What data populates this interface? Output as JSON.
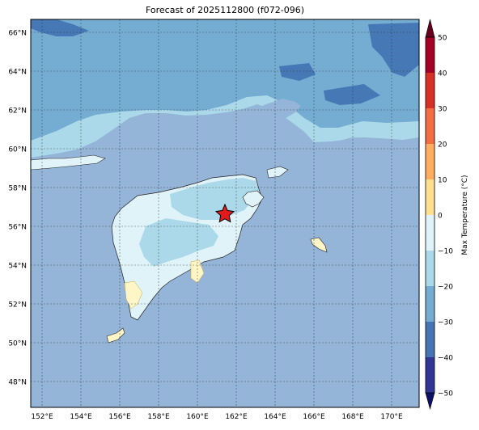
{
  "title": "Forecast of 2025112800 (f072-096)",
  "map": {
    "lat_labels": [
      "66°N",
      "64°N",
      "62°N",
      "60°N",
      "58°N",
      "56°N",
      "54°N",
      "52°N",
      "50°N",
      "48°N"
    ],
    "lon_labels": [
      "152°E",
      "154°E",
      "156°E",
      "158°E",
      "160°E",
      "162°E",
      "164°E",
      "166°E",
      "168°E",
      "170°E"
    ],
    "marker": {
      "name": "forecast-location-star",
      "lon": 161.4,
      "lat": 56.7,
      "color": "#e31a1c"
    },
    "gridlines": true
  },
  "colorbar": {
    "label": "Max Temperature (°C)",
    "ticks": [
      "50",
      "40",
      "30",
      "20",
      "10",
      "0",
      "−10",
      "−20",
      "−30",
      "−40",
      "−50"
    ],
    "colors_top_to_bottom": [
      "#a50026",
      "#d73027",
      "#f46d43",
      "#fdae61",
      "#fee090",
      "#e0f3f8",
      "#abd9e9",
      "#74add1",
      "#4575b4",
      "#313695"
    ],
    "extend_top": "#67001f",
    "extend_bottom": "#0d1166"
  },
  "colors": {
    "ocean": "#94b4d8",
    "land_cold": "#abd9e9",
    "land_mild": "#e0f3f8",
    "land_warm": "#fff6c8",
    "north_dark": "#4575b4",
    "north_mid": "#74add1",
    "grid": "#333333"
  }
}
